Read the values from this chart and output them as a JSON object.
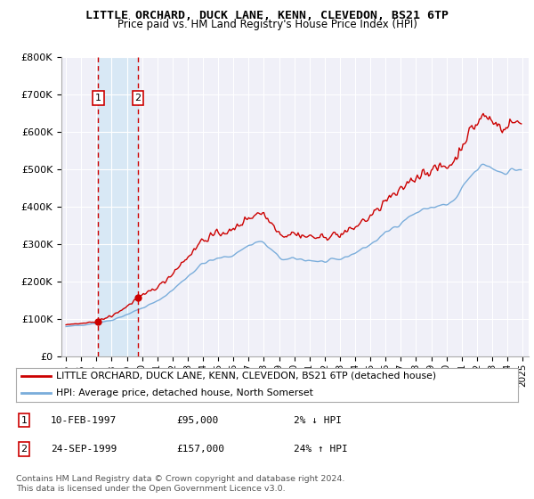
{
  "title": "LITTLE ORCHARD, DUCK LANE, KENN, CLEVEDON, BS21 6TP",
  "subtitle": "Price paid vs. HM Land Registry's House Price Index (HPI)",
  "legend_line1": "LITTLE ORCHARD, DUCK LANE, KENN, CLEVEDON, BS21 6TP (detached house)",
  "legend_line2": "HPI: Average price, detached house, North Somerset",
  "sale1_date": "10-FEB-1997",
  "sale1_price": 95000,
  "sale1_pct": "2% ↓ HPI",
  "sale2_date": "24-SEP-1999",
  "sale2_price": 157000,
  "sale2_pct": "24% ↑ HPI",
  "sale1_x": 1997.117,
  "sale2_x": 1999.731,
  "footnote": "Contains HM Land Registry data © Crown copyright and database right 2024.\nThis data is licensed under the Open Government Licence v3.0.",
  "property_line_color": "#cc0000",
  "hpi_line_color": "#7aaddb",
  "shade_color": "#d8e8f5",
  "marker_color": "#cc0000",
  "dashed_color": "#cc0000",
  "ylim": [
    0,
    800000
  ],
  "xlim": [
    1994.7,
    2025.4
  ],
  "background_color": "#ffffff",
  "plot_bg_color": "#f0f0f8"
}
